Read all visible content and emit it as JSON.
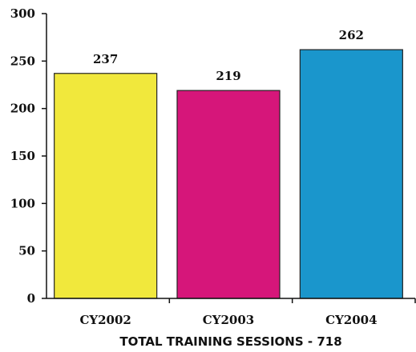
{
  "chart_data": {
    "type": "bar",
    "categories": [
      "CY2002",
      "CY2003",
      "CY2004"
    ],
    "values": [
      237,
      219,
      262
    ],
    "data_labels": [
      "237",
      "219",
      "262"
    ],
    "colors": [
      "#f1e83c",
      "#d6167a",
      "#1a96cc"
    ],
    "title": "",
    "xlabel": "TOTAL TRAINING SESSIONS - 718",
    "ylabel": "",
    "ylim": [
      0,
      300
    ],
    "yticks": [
      0,
      50,
      100,
      150,
      200,
      250,
      300
    ],
    "grid": false,
    "legend": "none"
  }
}
